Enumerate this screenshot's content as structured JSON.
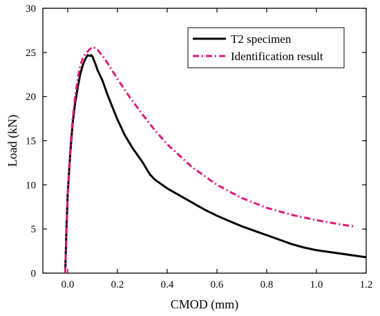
{
  "chart_data": {
    "type": "line",
    "xlabel": "CMOD (mm)",
    "ylabel": "Load (kN)",
    "xlim": [
      -0.1,
      1.2
    ],
    "ylim": [
      0,
      30
    ],
    "xticks": [
      "0.0",
      "0.2",
      "0.4",
      "0.6",
      "0.8",
      "1.0",
      "1.2"
    ],
    "xtick_values": [
      0.0,
      0.2,
      0.4,
      0.6,
      0.8,
      1.0,
      1.2
    ],
    "yticks": [
      "0",
      "5",
      "10",
      "15",
      "20",
      "25",
      "30"
    ],
    "ytick_values": [
      0,
      5,
      10,
      15,
      20,
      25,
      30
    ],
    "grid": false,
    "legend_position": "top-right",
    "series": [
      {
        "name": "T2 specimen",
        "color": "#000000",
        "style": "solid",
        "x": [
          -0.01,
          -0.008,
          -0.005,
          0.0,
          0.01,
          0.02,
          0.03,
          0.04,
          0.05,
          0.06,
          0.07,
          0.08,
          0.09,
          0.095,
          0.1,
          0.11,
          0.12,
          0.14,
          0.16,
          0.18,
          0.2,
          0.23,
          0.26,
          0.3,
          0.33,
          0.35,
          0.4,
          0.45,
          0.5,
          0.55,
          0.6,
          0.65,
          0.7,
          0.75,
          0.8,
          0.85,
          0.9,
          0.95,
          1.0,
          1.05,
          1.1,
          1.15,
          1.2
        ],
        "y": [
          0.0,
          2.0,
          5.0,
          9.0,
          13.5,
          17.0,
          19.3,
          21.0,
          22.5,
          23.5,
          24.2,
          24.7,
          24.6,
          24.7,
          24.5,
          23.8,
          23.0,
          21.8,
          20.2,
          18.8,
          17.4,
          15.6,
          14.2,
          12.6,
          11.2,
          10.6,
          9.6,
          8.8,
          8.0,
          7.2,
          6.5,
          5.9,
          5.3,
          4.8,
          4.3,
          3.8,
          3.3,
          2.9,
          2.6,
          2.4,
          2.2,
          2.0,
          1.8
        ]
      },
      {
        "name": "Identification result",
        "color": "#e6157e",
        "style": "dash-dot",
        "x": [
          -0.01,
          -0.005,
          0.0,
          0.01,
          0.02,
          0.03,
          0.04,
          0.05,
          0.06,
          0.07,
          0.08,
          0.09,
          0.1,
          0.11,
          0.12,
          0.14,
          0.16,
          0.18,
          0.2,
          0.25,
          0.3,
          0.35,
          0.4,
          0.5,
          0.6,
          0.7,
          0.8,
          0.9,
          1.0,
          1.1,
          1.15
        ],
        "y": [
          0.0,
          4.5,
          9.0,
          14.0,
          17.5,
          20.0,
          22.0,
          23.5,
          24.3,
          24.8,
          25.1,
          25.4,
          25.6,
          25.5,
          25.3,
          24.6,
          23.8,
          22.9,
          22.0,
          19.9,
          18.0,
          16.2,
          14.6,
          12.0,
          10.0,
          8.5,
          7.4,
          6.6,
          6.0,
          5.5,
          5.3
        ]
      }
    ]
  }
}
